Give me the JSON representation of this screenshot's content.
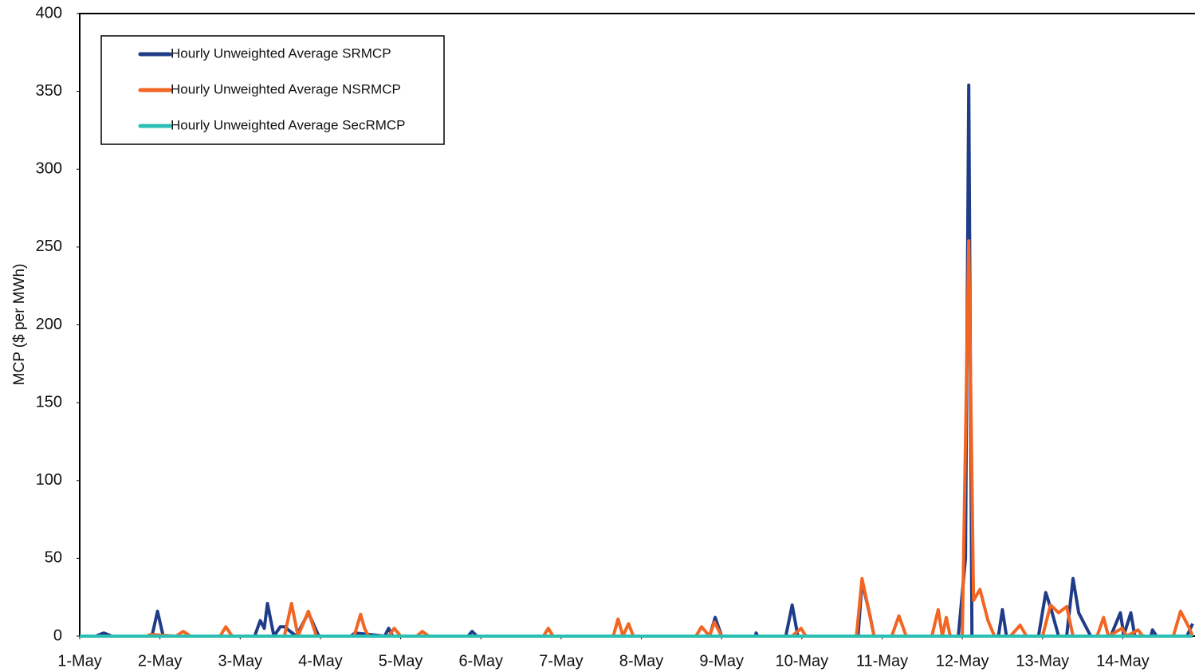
{
  "chart_data": {
    "type": "line",
    "ylabel": "MCP ($ per MWh)",
    "ylim": [
      0,
      400
    ],
    "yticks": [
      0,
      50,
      100,
      150,
      200,
      250,
      300,
      350,
      400
    ],
    "xlim": [
      0,
      13.9
    ],
    "xticks": [
      {
        "value": 0,
        "label": "1-May"
      },
      {
        "value": 1,
        "label": "2-May"
      },
      {
        "value": 2,
        "label": "3-May"
      },
      {
        "value": 3,
        "label": "4-May"
      },
      {
        "value": 4,
        "label": "5-May"
      },
      {
        "value": 5,
        "label": "6-May"
      },
      {
        "value": 6,
        "label": "7-May"
      },
      {
        "value": 7,
        "label": "8-May"
      },
      {
        "value": 8,
        "label": "9-May"
      },
      {
        "value": 9,
        "label": "10-May"
      },
      {
        "value": 10,
        "label": "11-May"
      },
      {
        "value": 11,
        "label": "12-May"
      },
      {
        "value": 12,
        "label": "13-May"
      },
      {
        "value": 13,
        "label": "14-May"
      }
    ],
    "legend": "upper left",
    "series": [
      {
        "name": "Hourly Unweighted Average SRMCP",
        "color": "#1f3c88",
        "x": [
          0,
          0.2,
          0.3,
          0.4,
          0.9,
          0.97,
          1.04,
          2.18,
          2.25,
          2.3,
          2.34,
          2.42,
          2.5,
          2.55,
          2.7,
          2.85,
          2.98,
          3.38,
          3.43,
          3.8,
          3.85,
          3.9,
          4.84,
          4.89,
          4.95,
          7.85,
          7.92,
          8.0,
          8.42,
          8.43,
          8.45,
          8.8,
          8.88,
          8.95,
          9.7,
          9.75,
          9.85,
          9.9,
          10.95,
          11.04,
          11.08,
          11.12,
          11.45,
          11.5,
          11.55,
          11.95,
          12.04,
          12.12,
          12.2,
          12.3,
          12.38,
          12.45,
          12.5,
          12.55,
          12.6,
          12.85,
          12.97,
          13.0,
          13.01,
          13.1,
          13.15,
          13.35,
          13.37,
          13.42,
          13.8,
          13.87
        ],
        "values": [
          0,
          0,
          2,
          0,
          0,
          16,
          0,
          0,
          10,
          5,
          21,
          0,
          6,
          6,
          0,
          15,
          0,
          0,
          2,
          0,
          5,
          0,
          0,
          3,
          0,
          0,
          12,
          0,
          0,
          2,
          0,
          0,
          20,
          0,
          0,
          35,
          13,
          0,
          0,
          50,
          354,
          0,
          0,
          17,
          0,
          0,
          28,
          15,
          0,
          0,
          37,
          15,
          10,
          5,
          0,
          0,
          15,
          5,
          0,
          15,
          0,
          0,
          4,
          0,
          0,
          8
        ]
      },
      {
        "name": "Hourly Unweighted Average NSRMCP",
        "color": "#f26522",
        "x": [
          0,
          0.84,
          0.88,
          1.2,
          1.29,
          1.38,
          1.75,
          1.82,
          1.9,
          2.55,
          2.64,
          2.72,
          2.85,
          2.95,
          3.42,
          3.5,
          3.55,
          3.6,
          3.85,
          3.92,
          4.0,
          4.2,
          4.27,
          4.35,
          5.78,
          5.84,
          5.9,
          6.65,
          6.71,
          6.77,
          6.84,
          6.9,
          7.68,
          7.75,
          7.85,
          7.91,
          8.0,
          8.88,
          8.99,
          9.05,
          9.68,
          9.75,
          9.82,
          9.9,
          10.12,
          10.21,
          10.3,
          10.62,
          10.7,
          10.75,
          10.8,
          10.85,
          11.0,
          11.08,
          11.14,
          11.22,
          11.32,
          11.4,
          11.6,
          11.72,
          11.8,
          12.0,
          12.1,
          12.2,
          12.3,
          12.38,
          12.68,
          12.76,
          12.82,
          12.99,
          13.05,
          13.19,
          13.25,
          13.63,
          13.72,
          13.83,
          13.87
        ],
        "values": [
          0,
          0,
          1,
          0,
          3,
          0,
          0,
          6,
          0,
          0,
          21,
          0,
          16,
          0,
          0,
          14,
          5,
          0,
          0,
          5,
          0,
          0,
          3,
          0,
          0,
          5,
          0,
          0,
          11,
          0,
          8,
          0,
          0,
          6,
          0,
          9,
          0,
          0,
          5,
          0,
          0,
          37,
          20,
          0,
          0,
          13,
          0,
          0,
          17,
          0,
          12,
          0,
          0,
          254,
          23,
          30,
          10,
          0,
          0,
          7,
          0,
          0,
          20,
          15,
          19,
          0,
          0,
          12,
          0,
          5,
          0,
          4,
          0,
          0,
          16,
          5,
          0
        ]
      },
      {
        "name": "Hourly Unweighted Average SecRMCP",
        "color": "#2bbfb3",
        "x": [
          0,
          13.87
        ],
        "values": [
          0,
          0
        ]
      }
    ]
  }
}
